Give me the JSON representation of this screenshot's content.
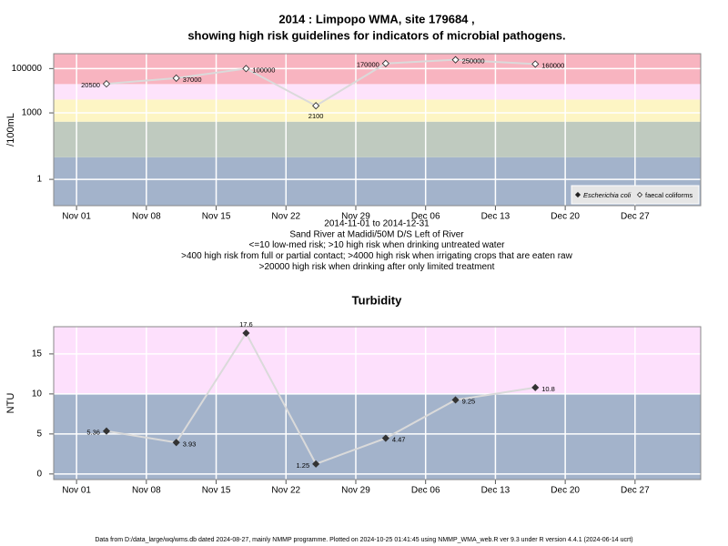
{
  "chart_data": [
    {
      "type": "line",
      "title": [
        "2014 : Limpopo WMA, site 179684 ,",
        "showing high risk guidelines for indicators of microbial pathogens."
      ],
      "ylabel": "/100mL",
      "notes": [
        "2014-11-01 to 2014-12-31",
        "Sand River at Madidi/50M D/S Left of River",
        "<=10 low-med risk; >10 high risk when drinking untreated water",
        ">400 high risk from full or partial contact; >4000 high risk when irrigating crops that are eaten raw",
        ">20000 high risk when drinking after only limited treatment"
      ],
      "x": [
        "2014-11-04",
        "2014-11-11",
        "2014-11-18",
        "2014-11-25",
        "2014-12-02",
        "2014-12-09",
        "2014-12-17"
      ],
      "series": [
        {
          "name": "Escherichia coli",
          "color": "#222222",
          "values": [
            null,
            null,
            null,
            null,
            null,
            null,
            null
          ]
        },
        {
          "name": "faecal coliforms",
          "color": "#ffffff",
          "values": [
            20500,
            37000,
            100000,
            2100,
            170000,
            250000,
            160000
          ]
        }
      ],
      "log_scale": true,
      "xlim": [
        "2014-10-29T17:00",
        "2015-01-02T14:00"
      ],
      "xticks": [
        {
          "value": "2014-11-01",
          "label": "Nov 01"
        },
        {
          "value": "2014-11-08",
          "label": "Nov 08"
        },
        {
          "value": "2014-11-15",
          "label": "Nov 15"
        },
        {
          "value": "2014-11-22",
          "label": "Nov 22"
        },
        {
          "value": "2014-11-29",
          "label": "Nov 29"
        },
        {
          "value": "2014-12-06",
          "label": "Dec 06"
        },
        {
          "value": "2014-12-13",
          "label": "Dec 13"
        },
        {
          "value": "2014-12-20",
          "label": "Dec 20"
        },
        {
          "value": "2014-12-27",
          "label": "Dec 27"
        }
      ],
      "ylim": [
        0.065,
        470000
      ],
      "yticks": [
        1,
        1000,
        100000
      ],
      "grid": true,
      "legend": "bottom-right",
      "bands": [
        {
          "from": 0.065,
          "to": 10,
          "color": "#a3b3cb"
        },
        {
          "from": 10,
          "to": 400,
          "color": "#bfcabf"
        },
        {
          "from": 400,
          "to": 4000,
          "color": "#fdf5c4"
        },
        {
          "from": 4000,
          "to": 20000,
          "color": "#fde3fb"
        },
        {
          "from": 20000,
          "to": 470000,
          "color": "#f8b4c0"
        }
      ]
    },
    {
      "type": "line",
      "title": "Turbidity",
      "ylabel": "NTU",
      "x": [
        "2014-11-04",
        "2014-11-11",
        "2014-11-18",
        "2014-11-25",
        "2014-12-02",
        "2014-12-09",
        "2014-12-17"
      ],
      "values": [
        5.36,
        3.93,
        17.6,
        1.25,
        4.47,
        9.25,
        10.8
      ],
      "color": "#333333",
      "xlim": [
        "2014-10-29T17:00",
        "2015-01-02T14:00"
      ],
      "xticks": [
        {
          "value": "2014-11-01",
          "label": "Nov 01"
        },
        {
          "value": "2014-11-08",
          "label": "Nov 08"
        },
        {
          "value": "2014-11-15",
          "label": "Nov 15"
        },
        {
          "value": "2014-11-22",
          "label": "Nov 22"
        },
        {
          "value": "2014-11-29",
          "label": "Nov 29"
        },
        {
          "value": "2014-12-06",
          "label": "Dec 06"
        },
        {
          "value": "2014-12-13",
          "label": "Dec 13"
        },
        {
          "value": "2014-12-20",
          "label": "Dec 20"
        },
        {
          "value": "2014-12-27",
          "label": "Dec 27"
        }
      ],
      "ylim": [
        -0.7,
        18.4
      ],
      "yticks": [
        0,
        5,
        10,
        15
      ],
      "grid": true,
      "bands": [
        {
          "from": -0.7,
          "to": 10,
          "color": "#a3b3cb"
        },
        {
          "from": 10,
          "to": 18.4,
          "color": "#fde0fc"
        }
      ]
    }
  ],
  "footer": "Data from D:/data_large/wq/wms.db dated 2024-08-27, mainly NMMP programme. Plotted on 2024-10-25 01:41:45 using NMMP_WMA_web.R ver 9.3 under R version 4.4.1 (2024-06-14 ucrt)"
}
